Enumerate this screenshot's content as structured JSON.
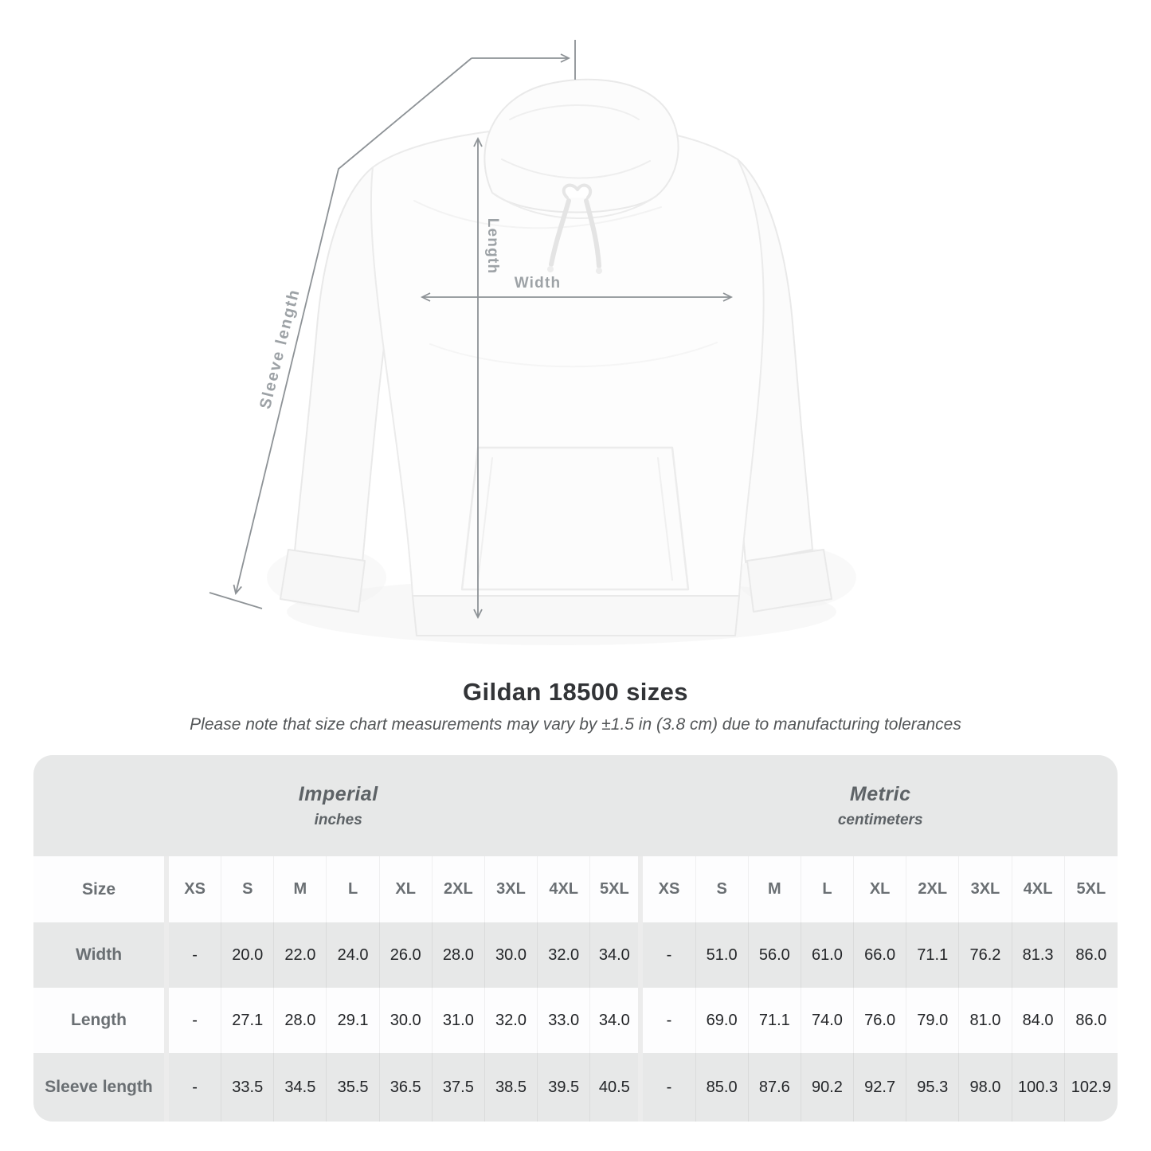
{
  "diagram": {
    "length_label": "Length",
    "width_label": "Width",
    "sleeve_label": "Sleeve length"
  },
  "title": "Gildan 18500 sizes",
  "subtitle": "Please note that size chart measurements may vary by ±1.5 in (3.8 cm) due to manufacturing tolerances",
  "colors": {
    "arrow_gray": "#8d9296",
    "diagram_label_gray": "#9da2a6",
    "row_gray": "#e7e8e8",
    "row_white": "#fdfdfe",
    "header_text_gray": "#6a6f73",
    "value_text_dark": "#232528"
  },
  "table": {
    "groups": [
      {
        "label": "Imperial",
        "unit": "inches"
      },
      {
        "label": "Metric",
        "unit": "centimeters"
      }
    ],
    "size_header": "Size",
    "sizes": [
      "XS",
      "S",
      "M",
      "L",
      "XL",
      "2XL",
      "3XL",
      "4XL",
      "5XL"
    ],
    "rows": [
      {
        "label": "Width",
        "imperial": [
          "-",
          "20.0",
          "22.0",
          "24.0",
          "26.0",
          "28.0",
          "30.0",
          "32.0",
          "34.0"
        ],
        "metric": [
          "-",
          "51.0",
          "56.0",
          "61.0",
          "66.0",
          "71.1",
          "76.2",
          "81.3",
          "86.0"
        ]
      },
      {
        "label": "Length",
        "imperial": [
          "-",
          "27.1",
          "28.0",
          "29.1",
          "30.0",
          "31.0",
          "32.0",
          "33.0",
          "34.0"
        ],
        "metric": [
          "-",
          "69.0",
          "71.1",
          "74.0",
          "76.0",
          "79.0",
          "81.0",
          "84.0",
          "86.0"
        ]
      },
      {
        "label": "Sleeve length",
        "imperial": [
          "-",
          "33.5",
          "34.5",
          "35.5",
          "36.5",
          "37.5",
          "38.5",
          "39.5",
          "40.5"
        ],
        "metric": [
          "-",
          "85.0",
          "87.6",
          "90.2",
          "92.7",
          "95.3",
          "98.0",
          "100.3",
          "102.9"
        ]
      }
    ]
  }
}
